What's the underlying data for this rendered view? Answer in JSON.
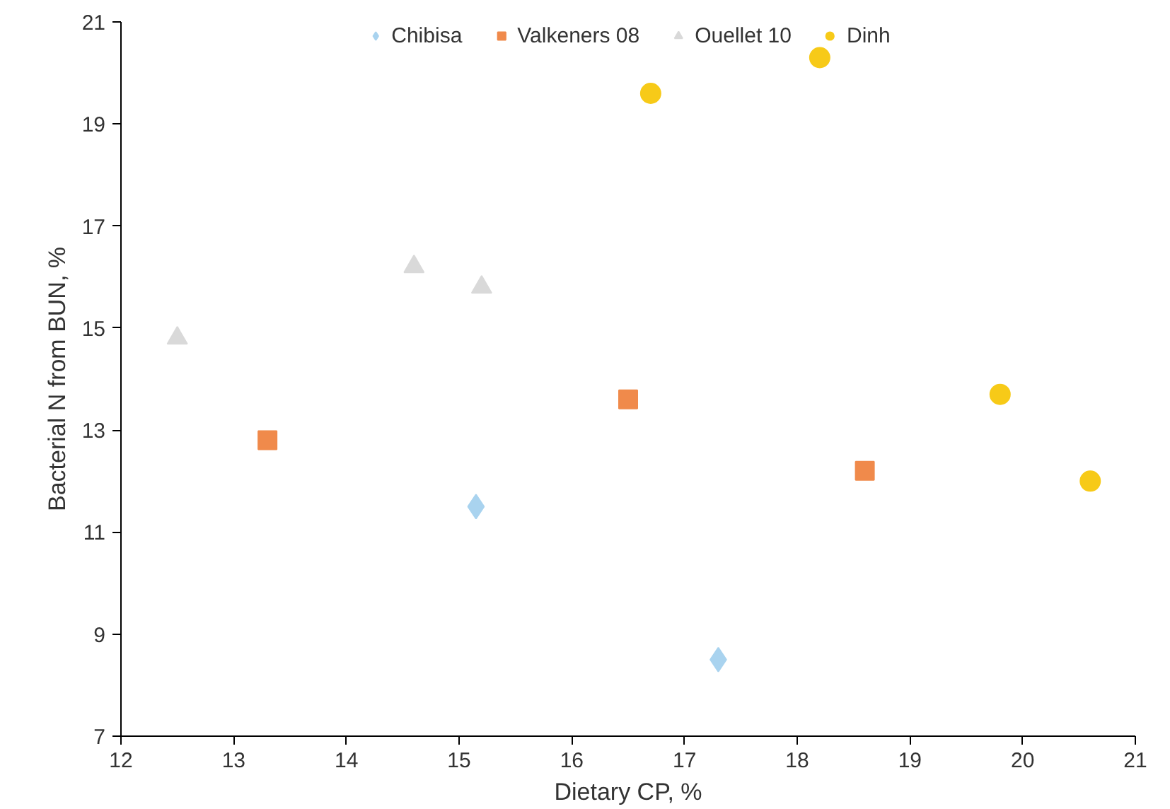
{
  "chart_data": {
    "type": "scatter",
    "xlabel": "Dietary CP, %",
    "ylabel": "Bacterial N from BUN, %",
    "xlim": [
      12,
      21
    ],
    "xticks": [
      12,
      13,
      14,
      15,
      16,
      17,
      18,
      19,
      20,
      21
    ],
    "ylim": [
      7,
      21
    ],
    "yticks": [
      7,
      9,
      11,
      13,
      15,
      17,
      19,
      21
    ],
    "grid": false,
    "legend": "top",
    "series": [
      {
        "name": "Chibisa",
        "color": "#a9d3ef",
        "marker": "diamond",
        "x": [
          15.15,
          17.3
        ],
        "values": [
          11.5,
          8.5
        ]
      },
      {
        "name": "Valkeners 08",
        "color": "#f08a4b",
        "marker": "square",
        "x": [
          13.3,
          16.5,
          18.6
        ],
        "values": [
          12.8,
          13.6,
          12.2
        ]
      },
      {
        "name": "Ouellet 10",
        "color": "#d9d9d9",
        "marker": "triangle",
        "x": [
          12.5,
          14.6,
          15.2
        ],
        "values": [
          14.8,
          16.2,
          15.8
        ]
      },
      {
        "name": "Dinh",
        "color": "#f7ca18",
        "marker": "circle",
        "x": [
          16.7,
          18.2,
          19.8,
          20.6
        ],
        "values": [
          19.6,
          20.3,
          13.7,
          12.0
        ]
      }
    ]
  }
}
